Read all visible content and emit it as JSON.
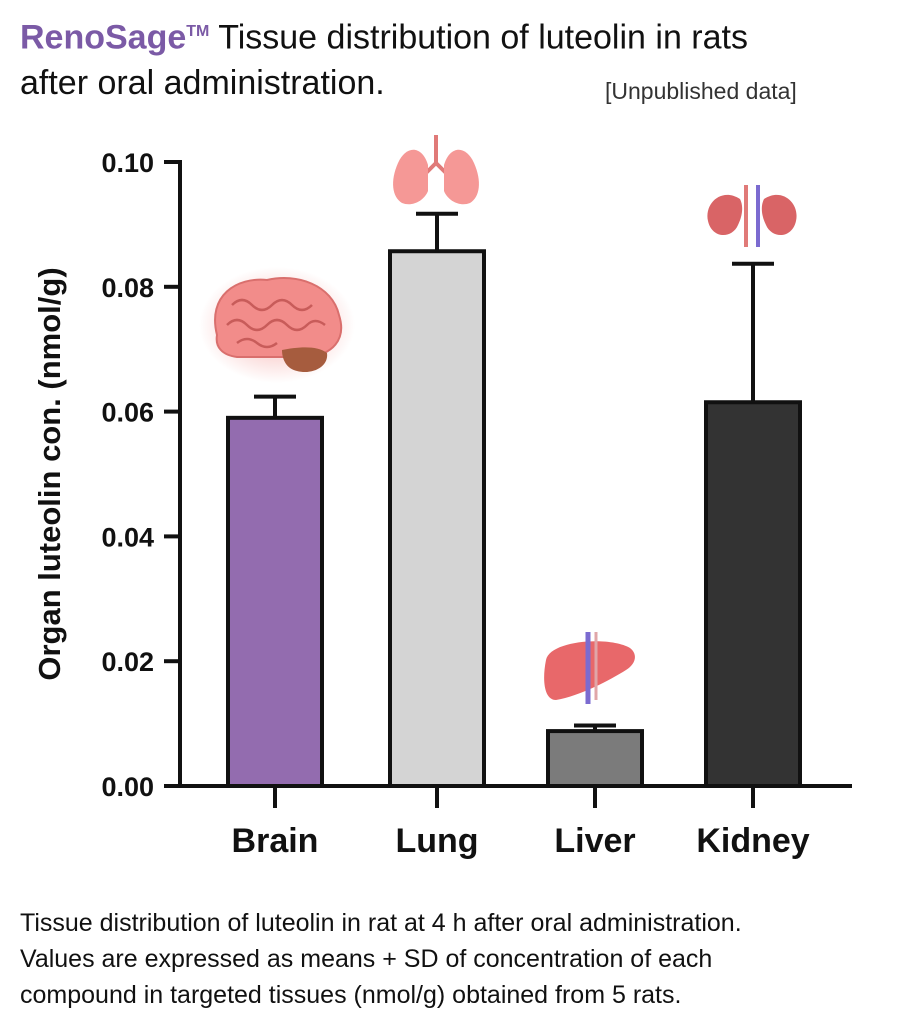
{
  "header": {
    "brand": "RenoSage",
    "trademark": "TM",
    "title_line1": " Tissue distribution of luteolin in rats",
    "title_line2": "after oral administration.",
    "note": "[Unpublished data]"
  },
  "chart_data": {
    "type": "bar",
    "categories": [
      "Brain",
      "Lung",
      "Liver",
      "Kidney"
    ],
    "values": [
      0.059,
      0.0857,
      0.0088,
      0.0615
    ],
    "errors": [
      0.0034,
      0.006,
      0.0009,
      0.0222
    ],
    "colors": [
      "#936caf",
      "#d4d4d4",
      "#7b7b7b",
      "#333333"
    ],
    "icons": [
      "brain-icon",
      "lungs-icon",
      "liver-icon",
      "kidneys-icon"
    ],
    "ylabel": "Organ luteolin con. (nmol/g)",
    "xlabel": "",
    "ylim": [
      0,
      0.1
    ],
    "yticks": [
      "0.00",
      "0.02",
      "0.04",
      "0.06",
      "0.08",
      "0.10"
    ],
    "error_style": "mean + SD (upper only)",
    "grid": false
  },
  "caption": {
    "line1": "Tissue distribution of luteolin in rat at 4 h after oral administration.",
    "line2": "Values are expressed as means + SD of concentration of each",
    "line3": "compound in targeted tissues (nmol/g) obtained from 5 rats."
  }
}
